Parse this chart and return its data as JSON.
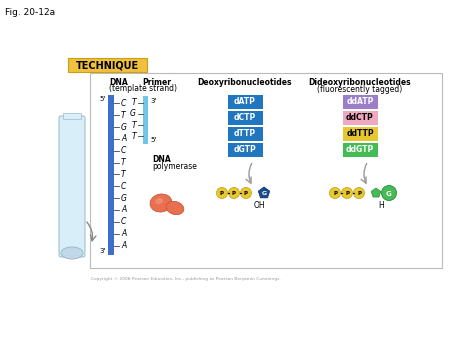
{
  "fig_title": "Fig. 20-12a",
  "technique_label": "TECHNIQUE",
  "technique_bg": "#F0C040",
  "dna_label_line1": "DNA",
  "dna_label_line2": "(template strand)",
  "dna_sequence": [
    "C",
    "T",
    "G",
    "A",
    "C",
    "T",
    "T",
    "C",
    "G",
    "A",
    "C",
    "A",
    "A"
  ],
  "primer_label": "Primer",
  "primer_seq": [
    "T",
    "G",
    "T",
    "T"
  ],
  "primer_color": "#6EC6E8",
  "dna_bar_color": "#3B6FC9",
  "deoxy_label": "Deoxyribonucleotides",
  "dideoxy_label_line1": "Dideoxyribonucleotides",
  "dideoxy_label_line2": "(fluorescently tagged)",
  "deoxy_items": [
    "dATP",
    "dCTP",
    "dTTP",
    "dGTP"
  ],
  "deoxy_color": "#2176C0",
  "dideoxy_items": [
    "ddATP",
    "ddCTP",
    "ddTTP",
    "ddGTP"
  ],
  "dideoxy_colors": [
    "#9B7EC8",
    "#F0A8C0",
    "#E8C830",
    "#44BB55"
  ],
  "dideoxy_text_colors": [
    "white",
    "black",
    "black",
    "white"
  ],
  "polymerase_label_line1": "DNA",
  "polymerase_label_line2": "polymerase",
  "polymerase_color": "#E87050",
  "polymerase_edge": "#C05030",
  "p_circle_color": "#E8C830",
  "p_circle_edge": "#C8A820",
  "deoxy_pent_color": "#1A4A90",
  "deoxy_pent_edge": "#0A2A60",
  "dideoxy_pent_color": "#44BB55",
  "dideoxy_pent_edge": "#2A8A35",
  "dideoxy_g_color": "#44BB55",
  "arrow_color": "#999999",
  "copyright": "Copyright © 2008 Pearson Education, Inc., publishing as Pearson Benjamin Cummings.",
  "background": "#FFFFFF"
}
